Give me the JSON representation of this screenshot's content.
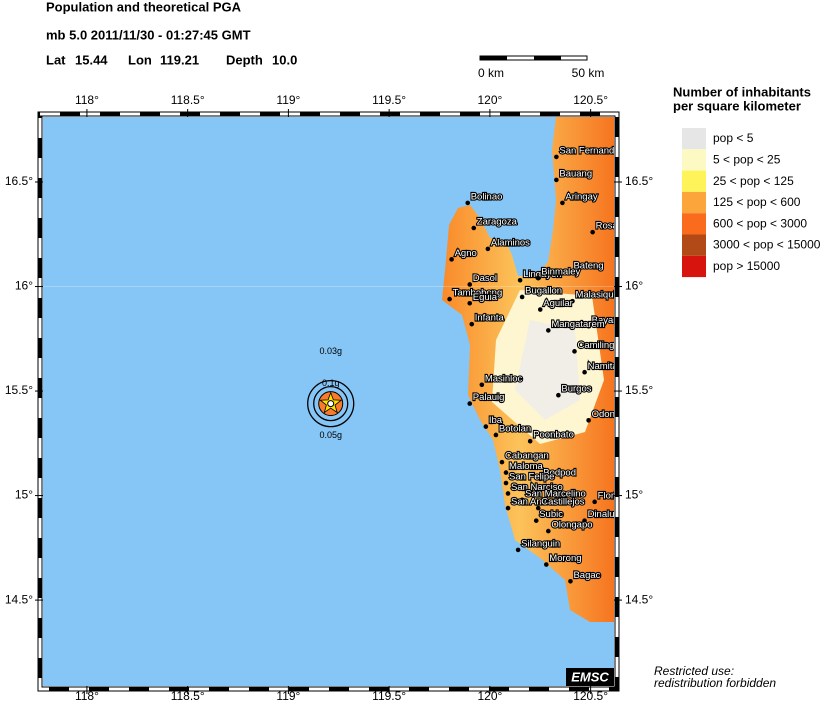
{
  "header": {
    "title": "Population and theoretical PGA",
    "event": "mb 5.0  2011/11/30 - 01:27:45 GMT",
    "lat_label": "Lat",
    "lat": 15.44,
    "lon_label": "Lon",
    "lon": 119.21,
    "depth_label": "Depth",
    "depth": "10.0"
  },
  "scale_bar": {
    "start": "0 km",
    "end": "50 km"
  },
  "map": {
    "lonlim": [
      117.782,
      120.616
    ],
    "latlim": [
      14.089,
      16.811
    ],
    "lon_ticks": [
      {
        "value": 118,
        "label": "118°"
      },
      {
        "value": 118.5,
        "label": "118.5°"
      },
      {
        "value": 119,
        "label": "119°"
      },
      {
        "value": 119.5,
        "label": "119.5°"
      },
      {
        "value": 120,
        "label": "120°"
      },
      {
        "value": 120.5,
        "label": "120.5°"
      }
    ],
    "lat_ticks": [
      {
        "value": 14.5,
        "label": "14.5°"
      },
      {
        "value": 15,
        "label": "15°"
      },
      {
        "value": 15.5,
        "label": "15.5°"
      },
      {
        "value": 16,
        "label": "16°"
      },
      {
        "value": 16.5,
        "label": "16.5°"
      }
    ],
    "pga_labels": [
      "0.03g",
      "0.1g",
      "0.05g"
    ],
    "cities": [
      {
        "name": "San Fernando",
        "lon": 120.33,
        "lat": 16.62
      },
      {
        "name": "Bauang",
        "lon": 120.33,
        "lat": 16.51
      },
      {
        "name": "Aringay",
        "lon": 120.36,
        "lat": 16.4
      },
      {
        "name": "Rosario",
        "lon": 120.51,
        "lat": 16.26
      },
      {
        "name": "Bolinao",
        "lon": 119.89,
        "lat": 16.4
      },
      {
        "name": "Zaragoza",
        "lon": 119.92,
        "lat": 16.28
      },
      {
        "name": "Alaminos",
        "lon": 119.99,
        "lat": 16.18
      },
      {
        "name": "Agno",
        "lon": 119.81,
        "lat": 16.13
      },
      {
        "name": "Bateng",
        "lon": 120.4,
        "lat": 16.07
      },
      {
        "name": "Lingayen",
        "lon": 120.15,
        "lat": 16.03
      },
      {
        "name": "Binmaley",
        "lon": 120.24,
        "lat": 16.04
      },
      {
        "name": "Dasol",
        "lon": 119.9,
        "lat": 16.01
      },
      {
        "name": "Tambobong",
        "lon": 119.8,
        "lat": 15.94
      },
      {
        "name": "Eguia",
        "lon": 119.9,
        "lat": 15.92
      },
      {
        "name": "Bugallon",
        "lon": 120.16,
        "lat": 15.95
      },
      {
        "name": "Malasiqui",
        "lon": 120.41,
        "lat": 15.93
      },
      {
        "name": "Aguilar",
        "lon": 120.25,
        "lat": 15.89
      },
      {
        "name": "Infanta",
        "lon": 119.91,
        "lat": 15.82
      },
      {
        "name": "Bayambang",
        "lon": 120.49,
        "lat": 15.81
      },
      {
        "name": "Mangatarem",
        "lon": 120.29,
        "lat": 15.79
      },
      {
        "name": "Camiling",
        "lon": 120.42,
        "lat": 15.69
      },
      {
        "name": "Namitan",
        "lon": 120.47,
        "lat": 15.59
      },
      {
        "name": "Masinloc",
        "lon": 119.96,
        "lat": 15.53
      },
      {
        "name": "Burgos",
        "lon": 120.34,
        "lat": 15.48
      },
      {
        "name": "Palauig",
        "lon": 119.9,
        "lat": 15.44
      },
      {
        "name": "Odonnell",
        "lon": 120.49,
        "lat": 15.36
      },
      {
        "name": "Iba",
        "lon": 119.98,
        "lat": 15.33
      },
      {
        "name": "Botolan",
        "lon": 120.03,
        "lat": 15.29
      },
      {
        "name": "Poonbato",
        "lon": 120.2,
        "lat": 15.26
      },
      {
        "name": "Cabangan",
        "lon": 120.06,
        "lat": 15.16
      },
      {
        "name": "Maloma",
        "lon": 120.08,
        "lat": 15.11
      },
      {
        "name": "Bodpod",
        "lon": 120.25,
        "lat": 15.08
      },
      {
        "name": "San Felipe",
        "lon": 120.08,
        "lat": 15.06
      },
      {
        "name": "San Narciso",
        "lon": 120.09,
        "lat": 15.01
      },
      {
        "name": "San Marcelino",
        "lon": 120.16,
        "lat": 14.98
      },
      {
        "name": "San Antonio",
        "lon": 120.09,
        "lat": 14.94
      },
      {
        "name": "Castillejos",
        "lon": 120.24,
        "lat": 14.94
      },
      {
        "name": "Floridablanca",
        "lon": 120.52,
        "lat": 14.97
      },
      {
        "name": "Subic",
        "lon": 120.23,
        "lat": 14.88
      },
      {
        "name": "Dinalupihan",
        "lon": 120.47,
        "lat": 14.88
      },
      {
        "name": "Olongapo",
        "lon": 120.29,
        "lat": 14.83
      },
      {
        "name": "Silanguin",
        "lon": 120.14,
        "lat": 14.74
      },
      {
        "name": "Morong",
        "lon": 120.28,
        "lat": 14.67
      },
      {
        "name": "Bagac",
        "lon": 120.4,
        "lat": 14.59
      }
    ]
  },
  "legend": {
    "title_lines": [
      "Number of inhabitants",
      "per square kilometer"
    ],
    "items": [
      {
        "label": "pop < 5",
        "color": "#e6e6e6"
      },
      {
        "label": "5 < pop < 25",
        "color": "#fdf9c2"
      },
      {
        "label": "25 < pop < 125",
        "color": "#fef45a"
      },
      {
        "label": "125 < pop < 600",
        "color": "#fca53a"
      },
      {
        "label": "600 < pop < 3000",
        "color": "#fb6b1e"
      },
      {
        "label": "3000 < pop < 15000",
        "color": "#b24a18"
      },
      {
        "label": "pop > 15000",
        "color": "#d8140f"
      }
    ]
  },
  "footer": {
    "logo": "EMSC",
    "notice_lines": [
      "Restricted use:",
      "redistribution forbidden"
    ]
  }
}
